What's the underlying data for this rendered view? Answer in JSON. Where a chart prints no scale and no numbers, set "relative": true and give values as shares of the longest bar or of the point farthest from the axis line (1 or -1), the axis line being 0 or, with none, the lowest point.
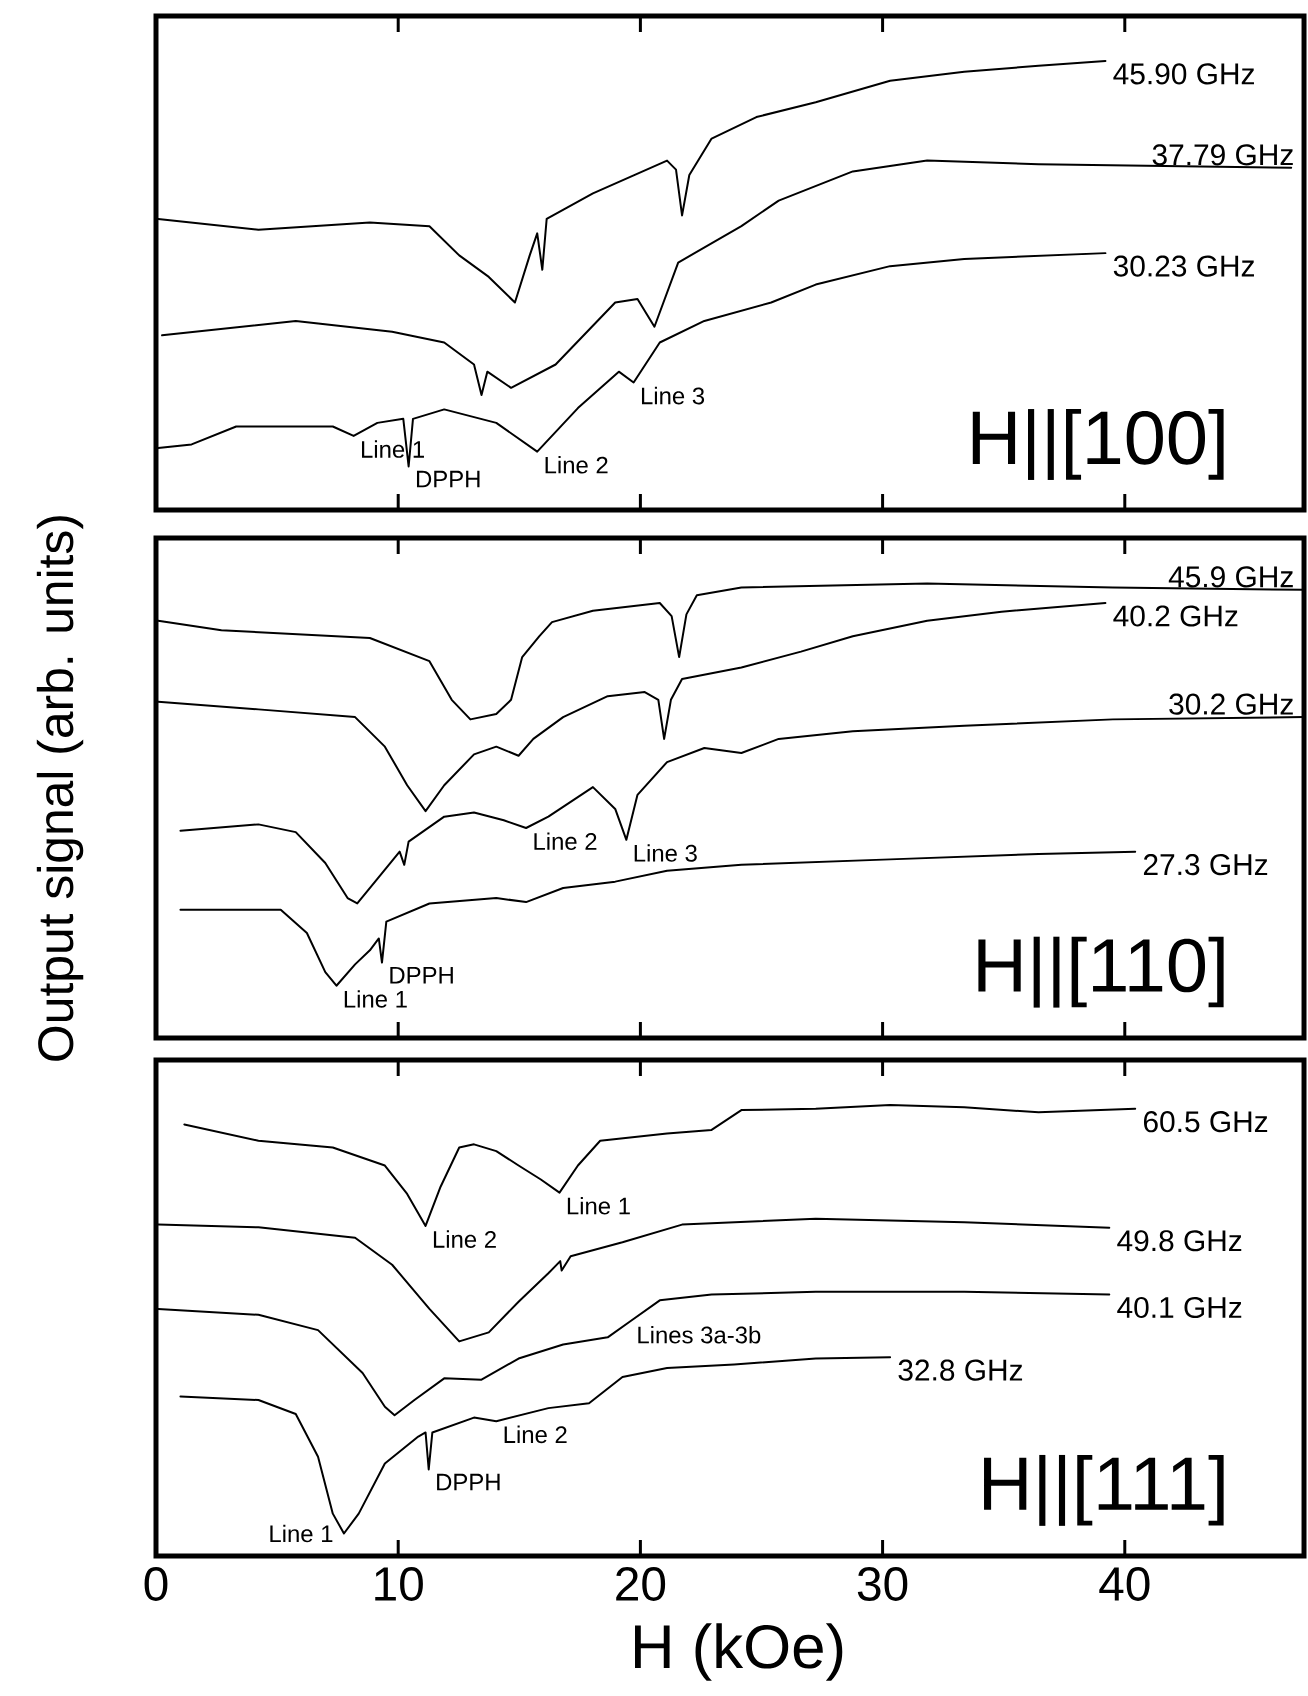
{
  "chart_data": [
    {
      "type": "line",
      "relative": true,
      "xlim": [
        0,
        47.4
      ],
      "xticks": [
        0,
        10,
        20,
        30,
        40
      ],
      "tick_labels": false,
      "series": [
        {
          "name": "45.90 GHz",
          "color": "#000000",
          "x": [
            0.09,
            4.23,
            8.83,
            11.29,
            12.52,
            13.74,
            14.82,
            15.43,
            15.74,
            15.95,
            16.13,
            18.04,
            21.1,
            21.47,
            21.72,
            22.02,
            22.94,
            24.79,
            27.24,
            30.31,
            33.37,
            36.44,
            39.2
          ],
          "values": [
            0.648,
            0.624,
            0.64,
            0.632,
            0.567,
            0.519,
            0.462,
            0.567,
            0.616,
            0.535,
            0.648,
            0.705,
            0.778,
            0.758,
            0.656,
            0.746,
            0.827,
            0.875,
            0.908,
            0.956,
            0.976,
            0.989,
            1.0
          ]
        },
        {
          "name": "37.79 GHz",
          "color": "#000000",
          "x": [
            0.25,
            5.77,
            9.75,
            11.9,
            13.13,
            13.44,
            13.68,
            14.66,
            16.5,
            18.96,
            19.88,
            20.58,
            21.56,
            24.17,
            25.71,
            28.77,
            31.84,
            36.44,
            46.87
          ],
          "values": [
            0.389,
            0.421,
            0.397,
            0.373,
            0.324,
            0.256,
            0.308,
            0.272,
            0.324,
            0.462,
            0.47,
            0.408,
            0.551,
            0.632,
            0.689,
            0.754,
            0.778,
            0.77,
            0.762
          ]
        },
        {
          "name": "30.23 GHz",
          "color": "#000000",
          "x": [
            0.09,
            1.47,
            3.31,
            7.3,
            8.16,
            9.14,
            10.21,
            10.43,
            10.61,
            11.9,
            14.05,
            15.74,
            17.42,
            19.11,
            19.72,
            20.8,
            22.64,
            25.4,
            27.24,
            30.31,
            33.37,
            39.2
          ],
          "values": [
            0.138,
            0.146,
            0.186,
            0.186,
            0.165,
            0.194,
            0.203,
            0.097,
            0.203,
            0.224,
            0.194,
            0.13,
            0.227,
            0.308,
            0.284,
            0.373,
            0.421,
            0.462,
            0.502,
            0.543,
            0.559,
            0.572
          ]
        }
      ],
      "annotations": [
        {
          "text": "Line 1",
          "x": 8.16,
          "y": 0.165
        },
        {
          "text": "DPPH",
          "x": 10.43,
          "y": 0.097
        },
        {
          "text": "Line 2",
          "x": 15.74,
          "y": 0.13
        },
        {
          "text": "Line 3",
          "x": 19.72,
          "y": 0.284
        },
        "H||[100]"
      ]
    },
    {
      "type": "line",
      "relative": true,
      "xlim": [
        0,
        47.4
      ],
      "xticks": [
        0,
        10,
        20,
        30,
        40
      ],
      "tick_labels": false,
      "ylabel": "Output signal (arb. units)",
      "series": [
        {
          "name": "45.9 GHz",
          "color": "#000000",
          "x": [
            0.09,
            2.7,
            8.83,
            11.29,
            12.21,
            12.98,
            14.05,
            14.66,
            15.12,
            15.83,
            16.35,
            18.04,
            20.8,
            21.29,
            21.6,
            21.9,
            22.33,
            24.17,
            31.84,
            39.51,
            47.4
          ],
          "values": [
            0.918,
            0.897,
            0.88,
            0.829,
            0.744,
            0.701,
            0.713,
            0.744,
            0.838,
            0.884,
            0.915,
            0.94,
            0.957,
            0.928,
            0.838,
            0.932,
            0.974,
            0.991,
            1.0,
            0.991,
            0.986
          ]
        },
        {
          "name": "40.2 GHz",
          "color": "#000000",
          "x": [
            0.09,
            4.23,
            8.22,
            9.45,
            10.37,
            11.13,
            11.9,
            13.13,
            14.05,
            14.97,
            15.58,
            16.81,
            18.65,
            20.18,
            20.74,
            20.98,
            21.26,
            21.72,
            24.17,
            26.63,
            28.77,
            31.84,
            34.91,
            39.2
          ],
          "values": [
            0.74,
            0.723,
            0.706,
            0.641,
            0.556,
            0.499,
            0.556,
            0.624,
            0.641,
            0.621,
            0.658,
            0.706,
            0.752,
            0.761,
            0.744,
            0.658,
            0.744,
            0.79,
            0.815,
            0.85,
            0.884,
            0.918,
            0.938,
            0.957
          ]
        },
        {
          "name": "30.2 GHz",
          "color": "#000000",
          "x": [
            1.01,
            4.23,
            5.77,
            6.99,
            7.91,
            8.31,
            9.14,
            10.06,
            10.25,
            10.43,
            11.9,
            13.13,
            14.36,
            15.28,
            16.2,
            18.04,
            18.96,
            19.42,
            19.88,
            21.1,
            22.64,
            24.17,
            25.71,
            28.77,
            33.37,
            39.51,
            47.4
          ],
          "values": [
            0.456,
            0.47,
            0.453,
            0.385,
            0.308,
            0.296,
            0.35,
            0.41,
            0.381,
            0.432,
            0.487,
            0.496,
            0.479,
            0.462,
            0.487,
            0.552,
            0.504,
            0.436,
            0.535,
            0.607,
            0.638,
            0.627,
            0.658,
            0.675,
            0.687,
            0.701,
            0.706
          ]
        },
        {
          "name": "27.3 GHz",
          "color": "#000000",
          "x": [
            1.01,
            5.15,
            6.23,
            6.99,
            7.45,
            8.22,
            8.83,
            9.2,
            9.33,
            9.51,
            11.29,
            14.05,
            15.28,
            16.81,
            18.96,
            21.1,
            24.17,
            30.31,
            36.44,
            40.43
          ],
          "values": [
            0.282,
            0.282,
            0.231,
            0.145,
            0.115,
            0.162,
            0.193,
            0.219,
            0.166,
            0.256,
            0.296,
            0.308,
            0.299,
            0.33,
            0.344,
            0.368,
            0.381,
            0.393,
            0.405,
            0.41
          ]
        }
      ],
      "annotations": [
        {
          "text": "Line 1",
          "x": 7.45,
          "y": 0.115
        },
        {
          "text": "DPPH",
          "x": 9.33,
          "y": 0.166
        },
        {
          "text": "Line 2",
          "x": 15.28,
          "y": 0.462
        },
        {
          "text": "Line 3",
          "x": 19.42,
          "y": 0.436
        },
        "H||[110]"
      ]
    },
    {
      "type": "line",
      "relative": true,
      "xlim": [
        0,
        47.4
      ],
      "xticks": [
        0,
        10,
        20,
        30,
        40
      ],
      "tick_labels": "x",
      "xlabel": "H (kOe)",
      "series": [
        {
          "name": "60.5 GHz",
          "color": "#000000",
          "x": [
            1.17,
            4.23,
            7.3,
            9.45,
            10.37,
            11.13,
            11.75,
            12.52,
            13.13,
            14.05,
            14.97,
            15.89,
            16.66,
            17.42,
            18.34,
            21.1,
            22.94,
            24.17,
            27.24,
            30.31,
            33.37,
            36.44,
            40.43
          ],
          "values": [
            0.957,
            0.921,
            0.906,
            0.866,
            0.803,
            0.732,
            0.819,
            0.906,
            0.913,
            0.898,
            0.866,
            0.835,
            0.806,
            0.866,
            0.921,
            0.937,
            0.945,
            0.989,
            0.992,
            1.0,
            0.995,
            0.984,
            0.992
          ]
        },
        {
          "name": "49.8 GHz",
          "color": "#000000",
          "x": [
            0.09,
            4.23,
            8.22,
            9.75,
            11.29,
            12.52,
            13.74,
            14.97,
            16.2,
            16.69,
            16.75,
            17.12,
            19.26,
            21.72,
            27.24,
            33.37,
            39.36
          ],
          "values": [
            0.735,
            0.729,
            0.706,
            0.646,
            0.548,
            0.476,
            0.496,
            0.564,
            0.627,
            0.654,
            0.633,
            0.665,
            0.696,
            0.735,
            0.748,
            0.74,
            0.728
          ]
        },
        {
          "name": "40.1 GHz",
          "color": "#000000",
          "x": [
            0.09,
            4.23,
            6.69,
            8.53,
            9.45,
            9.85,
            10.67,
            11.9,
            13.44,
            14.97,
            16.81,
            18.65,
            19.57,
            20.8,
            22.94,
            27.24,
            33.37,
            39.36
          ],
          "values": [
            0.548,
            0.535,
            0.501,
            0.406,
            0.331,
            0.312,
            0.346,
            0.394,
            0.391,
            0.438,
            0.469,
            0.485,
            0.52,
            0.567,
            0.58,
            0.586,
            0.586,
            0.58
          ]
        },
        {
          "name": "32.8 GHz",
          "color": "#000000",
          "x": [
            1.01,
            4.23,
            5.77,
            6.69,
            7.3,
            7.76,
            8.37,
            9.45,
            10.83,
            11.13,
            11.26,
            11.41,
            13.13,
            14.05,
            16.2,
            17.88,
            19.26,
            21.1,
            23.87,
            27.24,
            30.31
          ],
          "values": [
            0.354,
            0.346,
            0.315,
            0.22,
            0.094,
            0.05,
            0.094,
            0.205,
            0.265,
            0.274,
            0.192,
            0.274,
            0.307,
            0.299,
            0.328,
            0.339,
            0.397,
            0.417,
            0.425,
            0.438,
            0.441
          ]
        }
      ],
      "annotations": [
        {
          "text": "Line 2",
          "x": 11.13,
          "y": 0.732
        },
        {
          "text": "Line 1",
          "x": 16.66,
          "y": 0.806
        },
        {
          "text": "Lines 3a-3b",
          "x": 19.57,
          "y": 0.52
        },
        {
          "text": "Line 2",
          "x": 14.05,
          "y": 0.299
        },
        {
          "text": "DPPH",
          "x": 11.26,
          "y": 0.192
        },
        {
          "text": "Line 1",
          "x": 7.76,
          "y": 0.05
        },
        "H||[111]"
      ]
    }
  ]
}
